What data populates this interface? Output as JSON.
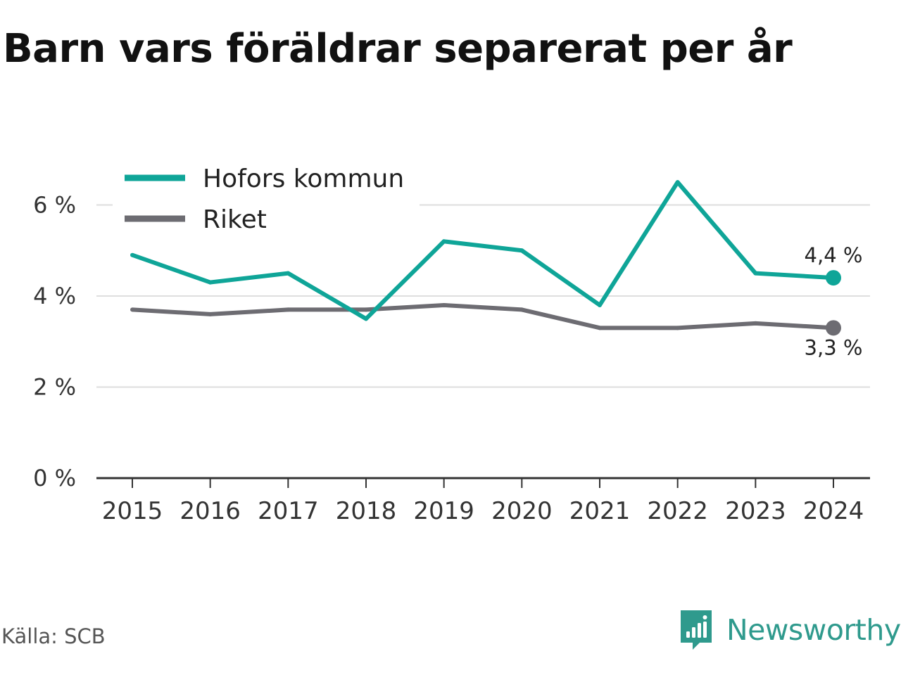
{
  "title": "Barn vars föräldrar separerat per år",
  "source": "Källa: SCB",
  "brand": {
    "name": "Newsworthy",
    "icon": "newsworthy-logo-icon",
    "color": "#2f9a8d"
  },
  "chart_data": {
    "type": "line",
    "title": "Barn vars föräldrar separerat per år",
    "xlabel": "",
    "ylabel": "",
    "categories": [
      "2015",
      "2016",
      "2017",
      "2018",
      "2019",
      "2020",
      "2021",
      "2022",
      "2023",
      "2024"
    ],
    "ylim": [
      0,
      7
    ],
    "yticks": [
      0,
      2,
      4,
      6
    ],
    "ytick_labels": [
      "0 %",
      "2 %",
      "4 %",
      "6 %"
    ],
    "grid": true,
    "legend_position": "top-left",
    "series": [
      {
        "name": "Hofors kommun",
        "color": "#0fa598",
        "values": [
          4.9,
          4.3,
          4.5,
          3.5,
          5.2,
          5.0,
          3.8,
          6.5,
          4.5,
          4.4
        ],
        "end_label": "4,4 %"
      },
      {
        "name": "Riket",
        "color": "#6d6c72",
        "values": [
          3.7,
          3.6,
          3.7,
          3.7,
          3.8,
          3.7,
          3.3,
          3.3,
          3.4,
          3.3
        ],
        "end_label": "3,3 %"
      }
    ]
  }
}
